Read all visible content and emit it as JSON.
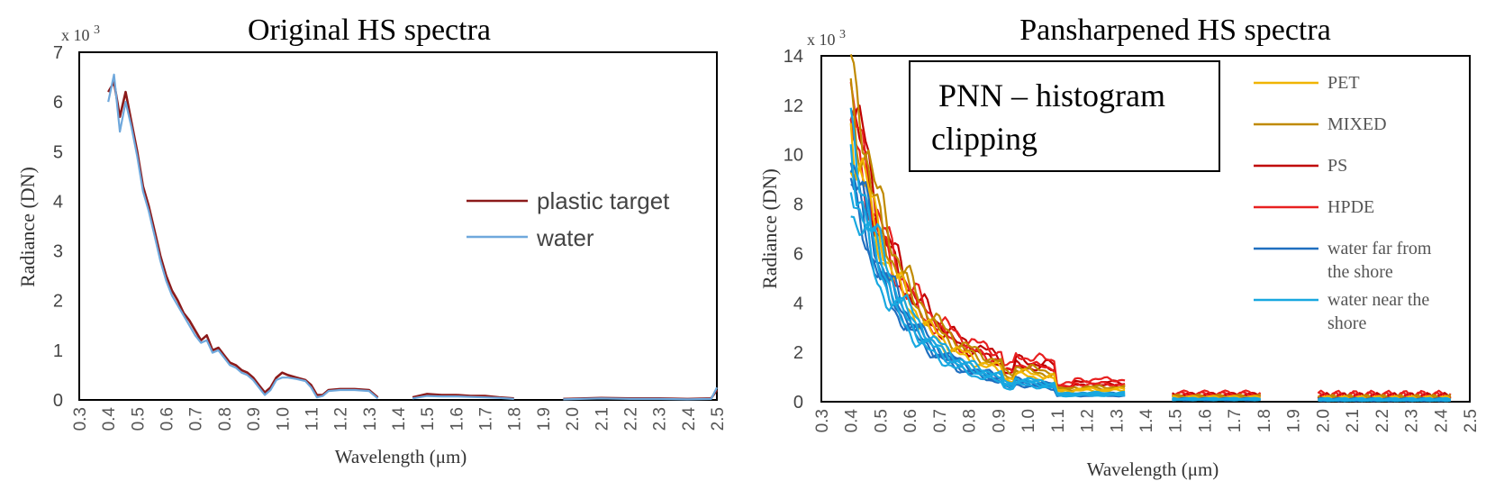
{
  "chart_data": [
    {
      "type": "line",
      "title": "Original HS spectra",
      "xlabel": "Wavelength (μm)",
      "ylabel": "Radiance  (DN)",
      "yscale_label": "x 10",
      "yscale_exp": "3",
      "xlim": [
        0.3,
        2.5
      ],
      "ylim": [
        0,
        7
      ],
      "xticks": [
        "0.3",
        "0.4",
        "0.5",
        "0.6",
        "0.7",
        "0.8",
        "0.9",
        "1.0",
        "1.1",
        "1.2",
        "1.3",
        "1.4",
        "1.5",
        "1.6",
        "1.7",
        "1.8",
        "1.9",
        "2.0",
        "2.1",
        "2.2",
        "2.3",
        "2.4",
        "2.5"
      ],
      "yticks": [
        "0",
        "1",
        "2",
        "3",
        "4",
        "5",
        "6",
        "7"
      ],
      "grid": false,
      "legend_position": "center-right",
      "series": [
        {
          "name": "plastic target",
          "color": "#8b1a1a",
          "segments": [
            [
              [
                0.4,
                6.2
              ],
              [
                0.42,
                6.4
              ],
              [
                0.44,
                5.7
              ],
              [
                0.46,
                6.2
              ],
              [
                0.48,
                5.6
              ],
              [
                0.5,
                5.0
              ],
              [
                0.52,
                4.3
              ],
              [
                0.54,
                3.9
              ],
              [
                0.56,
                3.4
              ],
              [
                0.58,
                2.9
              ],
              [
                0.6,
                2.5
              ],
              [
                0.62,
                2.2
              ],
              [
                0.64,
                2.0
              ],
              [
                0.66,
                1.75
              ],
              [
                0.68,
                1.6
              ],
              [
                0.7,
                1.4
              ],
              [
                0.72,
                1.2
              ],
              [
                0.74,
                1.3
              ],
              [
                0.76,
                1.0
              ],
              [
                0.78,
                1.05
              ],
              [
                0.8,
                0.9
              ],
              [
                0.82,
                0.75
              ],
              [
                0.84,
                0.7
              ],
              [
                0.86,
                0.6
              ],
              [
                0.88,
                0.55
              ],
              [
                0.9,
                0.45
              ],
              [
                0.92,
                0.3
              ],
              [
                0.94,
                0.15
              ],
              [
                0.96,
                0.25
              ],
              [
                0.98,
                0.45
              ],
              [
                1.0,
                0.55
              ],
              [
                1.02,
                0.5
              ],
              [
                1.05,
                0.45
              ],
              [
                1.08,
                0.4
              ],
              [
                1.1,
                0.3
              ],
              [
                1.12,
                0.1
              ],
              [
                1.14,
                0.1
              ],
              [
                1.16,
                0.2
              ],
              [
                1.2,
                0.22
              ],
              [
                1.25,
                0.22
              ],
              [
                1.3,
                0.2
              ],
              [
                1.33,
                0.05
              ]
            ],
            [
              [
                1.45,
                0.05
              ],
              [
                1.5,
                0.12
              ],
              [
                1.55,
                0.1
              ],
              [
                1.6,
                0.1
              ],
              [
                1.65,
                0.08
              ],
              [
                1.7,
                0.08
              ],
              [
                1.75,
                0.05
              ],
              [
                1.8,
                0.03
              ]
            ],
            [
              [
                1.97,
                0.02
              ],
              [
                2.1,
                0.04
              ],
              [
                2.2,
                0.03
              ],
              [
                2.3,
                0.03
              ],
              [
                2.4,
                0.02
              ],
              [
                2.48,
                0.03
              ],
              [
                2.5,
                0.2
              ]
            ]
          ]
        },
        {
          "name": "water",
          "color": "#6fa8dc",
          "segments": [
            [
              [
                0.4,
                6.0
              ],
              [
                0.42,
                6.55
              ],
              [
                0.44,
                5.4
              ],
              [
                0.46,
                6.0
              ],
              [
                0.48,
                5.5
              ],
              [
                0.5,
                4.9
              ],
              [
                0.52,
                4.2
              ],
              [
                0.54,
                3.8
              ],
              [
                0.56,
                3.3
              ],
              [
                0.58,
                2.8
              ],
              [
                0.6,
                2.4
              ],
              [
                0.62,
                2.1
              ],
              [
                0.64,
                1.9
              ],
              [
                0.66,
                1.7
              ],
              [
                0.68,
                1.5
              ],
              [
                0.7,
                1.3
              ],
              [
                0.72,
                1.15
              ],
              [
                0.74,
                1.2
              ],
              [
                0.76,
                0.95
              ],
              [
                0.78,
                1.0
              ],
              [
                0.8,
                0.85
              ],
              [
                0.82,
                0.7
              ],
              [
                0.84,
                0.65
              ],
              [
                0.86,
                0.55
              ],
              [
                0.88,
                0.5
              ],
              [
                0.9,
                0.4
              ],
              [
                0.92,
                0.25
              ],
              [
                0.94,
                0.1
              ],
              [
                0.96,
                0.2
              ],
              [
                0.98,
                0.4
              ],
              [
                1.0,
                0.45
              ],
              [
                1.02,
                0.45
              ],
              [
                1.05,
                0.42
              ],
              [
                1.08,
                0.38
              ],
              [
                1.1,
                0.25
              ],
              [
                1.12,
                0.05
              ],
              [
                1.14,
                0.08
              ],
              [
                1.16,
                0.18
              ],
              [
                1.2,
                0.2
              ],
              [
                1.25,
                0.2
              ],
              [
                1.3,
                0.18
              ],
              [
                1.33,
                0.03
              ]
            ],
            [
              [
                1.45,
                0.03
              ],
              [
                1.5,
                0.08
              ],
              [
                1.55,
                0.07
              ],
              [
                1.6,
                0.07
              ],
              [
                1.65,
                0.06
              ],
              [
                1.7,
                0.05
              ],
              [
                1.75,
                0.04
              ],
              [
                1.8,
                0.02
              ]
            ],
            [
              [
                1.97,
                0.01
              ],
              [
                2.1,
                0.03
              ],
              [
                2.2,
                0.02
              ],
              [
                2.3,
                0.02
              ],
              [
                2.4,
                0.01
              ],
              [
                2.48,
                0.02
              ],
              [
                2.5,
                0.25
              ]
            ]
          ]
        }
      ]
    },
    {
      "type": "line",
      "title": "Pansharpened HS spectra",
      "xlabel": "Wavelength (μm)",
      "ylabel": "Radiance  (DN)",
      "yscale_label": "x 10",
      "yscale_exp": "3",
      "annotation_lines": [
        "PNN – histogram",
        "clipping"
      ],
      "xlim": [
        0.3,
        2.5
      ],
      "ylim": [
        0,
        14
      ],
      "xticks": [
        "0.3",
        "0.4",
        "0.5",
        "0.6",
        "0.7",
        "0.8",
        "0.9",
        "1.0",
        "1.1",
        "1.2",
        "1.3",
        "1.4",
        "1.5",
        "1.6",
        "1.7",
        "1.8",
        "1.9",
        "2.0",
        "2.1",
        "2.2",
        "2.3",
        "2.4",
        "2.5"
      ],
      "yticks": [
        "0",
        "2",
        "4",
        "6",
        "8",
        "10",
        "12",
        "14"
      ],
      "grid": false,
      "legend_position": "top-right",
      "legend": [
        {
          "lines": [
            "PET"
          ],
          "color": "#f0b400"
        },
        {
          "lines": [
            "MIXED"
          ],
          "color": "#c08a00"
        },
        {
          "lines": [
            "PS"
          ],
          "color": "#c00000"
        },
        {
          "lines": [
            "HPDE"
          ],
          "color": "#e82020"
        },
        {
          "lines": [
            "water far from",
            "the shore"
          ],
          "color": "#1f6fc0"
        },
        {
          "lines": [
            "water near the",
            "shore"
          ],
          "color": "#18a8e0"
        }
      ],
      "series": [
        {
          "color": "#c00000",
          "peak": 11.3,
          "tail": 1.3,
          "swir": 0.28
        },
        {
          "color": "#c00000",
          "peak": 10.5,
          "tail": 1.1,
          "swir": 0.25
        },
        {
          "color": "#e82020",
          "peak": 10.8,
          "tail": 1.5,
          "swir": 0.35
        },
        {
          "color": "#e82020",
          "peak": 9.8,
          "tail": 1.2,
          "swir": 0.3
        },
        {
          "color": "#c08a00",
          "peak": 12.2,
          "tail": 1.0,
          "swir": 0.22
        },
        {
          "color": "#c08a00",
          "peak": 11.0,
          "tail": 0.9,
          "swir": 0.2
        },
        {
          "color": "#f0b400",
          "peak": 10.2,
          "tail": 0.85,
          "swir": 0.18
        },
        {
          "color": "#f0b400",
          "peak": 9.5,
          "tail": 0.75,
          "swir": 0.16
        },
        {
          "color": "#1f6fc0",
          "peak": 9.0,
          "tail": 0.55,
          "swir": 0.12
        },
        {
          "color": "#1f6fc0",
          "peak": 8.5,
          "tail": 0.5,
          "swir": 0.1
        },
        {
          "color": "#1f6fc0",
          "peak": 8.0,
          "tail": 0.45,
          "swir": 0.09
        },
        {
          "color": "#1f6fc0",
          "peak": 7.6,
          "tail": 0.4,
          "swir": 0.08
        },
        {
          "color": "#18a8e0",
          "peak": 9.6,
          "tail": 0.6,
          "swir": 0.12
        },
        {
          "color": "#18a8e0",
          "peak": 8.8,
          "tail": 0.55,
          "swir": 0.11
        },
        {
          "color": "#18a8e0",
          "peak": 8.2,
          "tail": 0.5,
          "swir": 0.1
        },
        {
          "color": "#18a8e0",
          "peak": 7.3,
          "tail": 0.42,
          "swir": 0.08
        }
      ]
    }
  ]
}
